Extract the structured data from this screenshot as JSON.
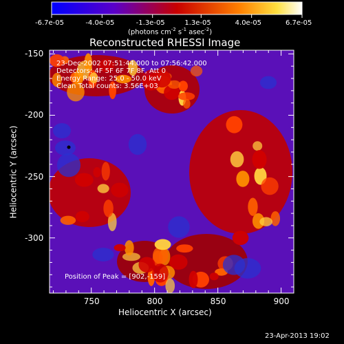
{
  "colorbar": {
    "ticks": [
      "-6.7e-05",
      "-4.0e-05",
      "-1.3e-05",
      "1.3e-05",
      "4.0e-05",
      "6.7e-05"
    ],
    "units_prefix": "(photons cm",
    "units_exp1": "-2",
    "units_mid": " s",
    "units_exp2": "-1",
    "units_mid2": " asec",
    "units_exp3": "-2",
    "units_suffix": ")"
  },
  "plot": {
    "title": "Reconstructed RHESSI Image",
    "info_lines": [
      "23-Dec-2002 07:51:44.000 to 07:56:42.000",
      "Detectors: 4F 5F 6F 7F 8F, Att 0",
      "Energy Range: 25.0 - 50.0 keV",
      "Clean     Total counts: 3.56E+03"
    ],
    "peak_label": "Position of Peak = [902,-159]"
  },
  "footer": {
    "timestamp": "23-Apr-2013 19:02"
  },
  "chart_data": {
    "type": "heatmap",
    "title": "Reconstructed RHESSI Image",
    "xlabel": "Heliocentric X (arcsec)",
    "ylabel": "Heliocentric Y (arcsec)",
    "xlim": [
      717,
      910
    ],
    "ylim": [
      -345,
      -147
    ],
    "xticks": [
      750,
      800,
      850,
      900
    ],
    "yticks": [
      -150,
      -200,
      -250,
      -300
    ],
    "colorbar_range": [
      -6.7e-05,
      6.7e-05
    ],
    "colorbar_ticks": [
      -6.7e-05,
      -4e-05,
      -1.3e-05,
      1.3e-05,
      4e-05,
      6.7e-05
    ],
    "peak_position": [
      902,
      -159
    ],
    "colors": {
      "min": "#0000ff",
      "neg": "#7000d0",
      "zero": "#d00000",
      "mid": "#ff7000",
      "high": "#ffff60",
      "max": "#ffffff"
    }
  }
}
